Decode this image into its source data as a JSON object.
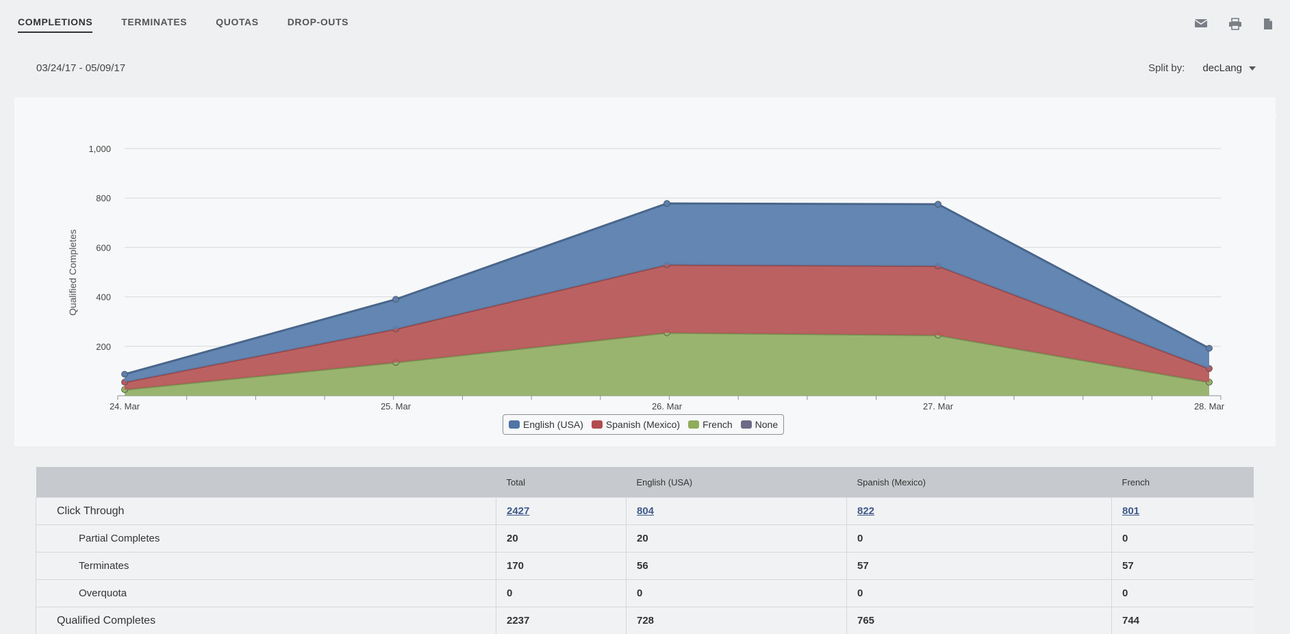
{
  "tabs": [
    {
      "label": "COMPLETIONS",
      "active": true
    },
    {
      "label": "TERMINATES",
      "active": false
    },
    {
      "label": "QUOTAS",
      "active": false
    },
    {
      "label": "DROP-OUTS",
      "active": false
    }
  ],
  "toolbar_icons": [
    "mail-icon",
    "print-icon",
    "document-icon"
  ],
  "date_range": "03/24/17 - 05/09/17",
  "split_by": {
    "label": "Split by:",
    "value": "decLang"
  },
  "chart_data": {
    "type": "area",
    "stacked": true,
    "title": "",
    "ylabel": "Qualified Completes",
    "xlabel": "",
    "categories": [
      "24. Mar",
      "25. Mar",
      "26. Mar",
      "27. Mar",
      "28. Mar"
    ],
    "ylim": [
      0,
      1000
    ],
    "yticks": [
      "200",
      "400",
      "600",
      "800",
      "1,000"
    ],
    "ytick_values": [
      200,
      400,
      600,
      800,
      1000
    ],
    "series": [
      {
        "name": "French",
        "color": "#94b066",
        "values": [
          25,
          135,
          255,
          245,
          55
        ]
      },
      {
        "name": "Spanish (Mexico)",
        "color": "#b7585a",
        "values": [
          30,
          135,
          275,
          280,
          55
        ]
      },
      {
        "name": "English (USA)",
        "color": "#5b7fae",
        "values": [
          32,
          120,
          248,
          250,
          82
        ]
      },
      {
        "name": "None",
        "color": "#6e6a86",
        "values": [
          0,
          0,
          0,
          0,
          0
        ]
      }
    ],
    "legend": [
      "English (USA)",
      "Spanish (Mexico)",
      "French",
      "None"
    ],
    "legend_colors": [
      "#4f74a6",
      "#b24b4e",
      "#8fab5c",
      "#6e6a86"
    ]
  },
  "table": {
    "headers": [
      "",
      "Total",
      "English (USA)",
      "Spanish (Mexico)",
      "French"
    ],
    "rows": [
      {
        "label": "Click Through",
        "indent": false,
        "link": true,
        "values": [
          "2427",
          "804",
          "822",
          "801"
        ]
      },
      {
        "label": "Partial Completes",
        "indent": true,
        "link": false,
        "values": [
          "20",
          "20",
          "0",
          "0"
        ]
      },
      {
        "label": "Terminates",
        "indent": true,
        "link": false,
        "values": [
          "170",
          "56",
          "57",
          "57"
        ]
      },
      {
        "label": "Overquota",
        "indent": true,
        "link": false,
        "values": [
          "0",
          "0",
          "0",
          "0"
        ]
      },
      {
        "label": "Qualified Completes",
        "indent": false,
        "link": false,
        "values": [
          "2237",
          "728",
          "765",
          "744"
        ]
      }
    ]
  }
}
